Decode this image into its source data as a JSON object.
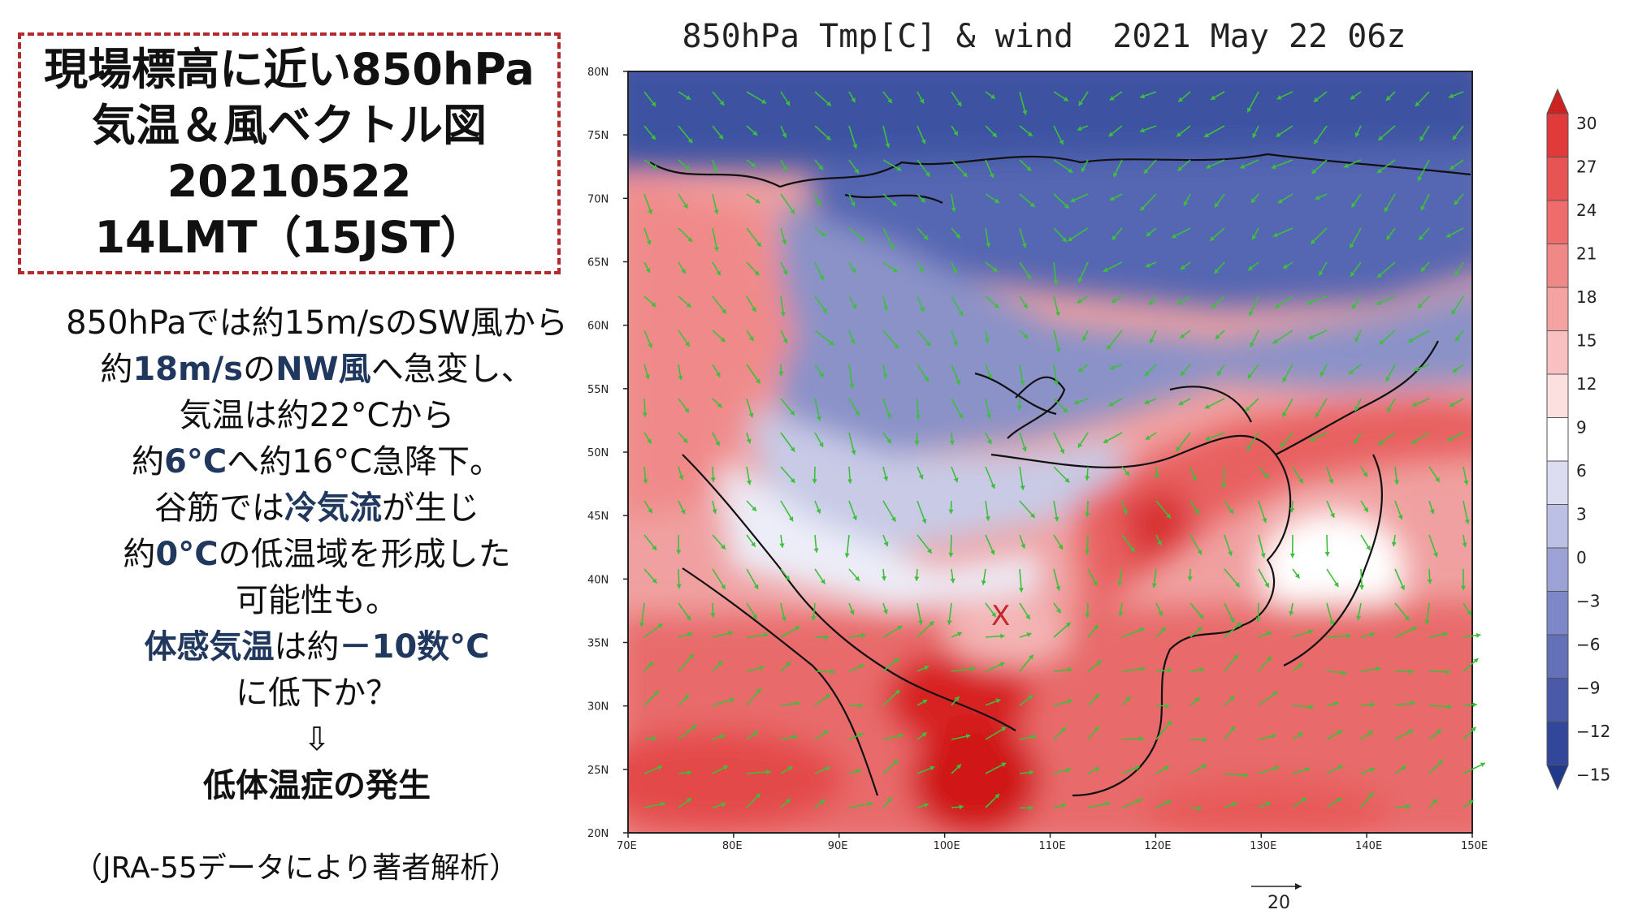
{
  "title_box": {
    "lines": [
      "現場標高に近い850hPa",
      "気温＆風ベクトル図",
      "20210522",
      "14LMT（15JST）"
    ]
  },
  "description": {
    "line1": "850hPaでは約15m/sのSW風から",
    "line2": {
      "a": "約",
      "b": "18m/s",
      "c": "の",
      "d": "NW風",
      "e": "へ急変し、"
    },
    "line3": "気温は約22°Cから",
    "line4": {
      "a": "約",
      "b": "6°C",
      "c": "へ約16°C急降下。"
    },
    "line5": {
      "a": "谷筋では",
      "b": "冷気流",
      "c": "が生じ"
    },
    "line6": {
      "a": "約",
      "b": "0°C",
      "c": "の低温域を形成した"
    },
    "line7": "可能性も。",
    "line8": {
      "a": "体感気温",
      "b": "は約",
      "c": "－10数°C"
    },
    "line9": "に低下か？",
    "arrow": "⇩",
    "conclusion": "低体温症の発生"
  },
  "source": "（JRA-55データにより著者解析）",
  "map": {
    "title": "850hPa Tmp[C] & wind  2021 May 22 06z",
    "lat_labels": [
      "80N",
      "75N",
      "70N",
      "65N",
      "60N",
      "55N",
      "50N",
      "45N",
      "40N",
      "35N",
      "30N",
      "25N",
      "20N"
    ],
    "lon_labels": [
      "70E",
      "80E",
      "90E",
      "100E",
      "110E",
      "120E",
      "130E",
      "140E",
      "150E"
    ],
    "marker": "X",
    "wind_reference_label": "20",
    "marker_color": "#c0282c",
    "vector_color": "#3cc03c"
  },
  "colorbar": {
    "labels": [
      "30",
      "27",
      "24",
      "21",
      "18",
      "15",
      "12",
      "9",
      "6",
      "3",
      "0",
      "−3",
      "−6",
      "−9",
      "−12",
      "−15"
    ],
    "colors": [
      "#cc2222",
      "#e03a3a",
      "#e85454",
      "#ee6c6c",
      "#f08888",
      "#f4a2a2",
      "#f8c0c0",
      "#fce0e0",
      "#ffffff",
      "#dcdcf0",
      "#bcc0e4",
      "#9ca2d6",
      "#7e88c8",
      "#6470b8",
      "#4a5aa8",
      "#32469a",
      "#1f3a8a"
    ]
  }
}
